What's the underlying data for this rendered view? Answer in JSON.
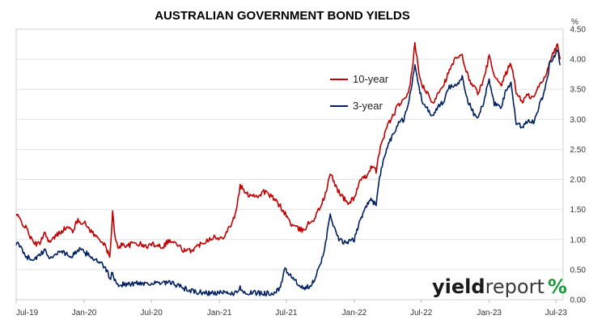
{
  "chart_data": {
    "type": "line",
    "title": "AUSTRALIAN GOVERNMENT BOND YIELDS",
    "ylabel": "%",
    "xlabel": "",
    "ylim": [
      0,
      4.5
    ],
    "y_ticks": [
      "0.00",
      "0.50",
      "1.00",
      "1.50",
      "2.00",
      "2.50",
      "3.00",
      "3.50",
      "4.00",
      "4.50"
    ],
    "x_tick_labels": [
      "Jul-19",
      "Jan-20",
      "Jul-20",
      "Jan-21",
      "Jul-21",
      "Jan-22",
      "Jul-22",
      "Jan-23",
      "Jul-23"
    ],
    "grid": "horizontal",
    "legend_position": "upper-middle",
    "colors": {
      "ten_year": "#c00000",
      "three_year": "#002060"
    },
    "series": [
      {
        "name": "10-year",
        "points": [
          [
            "2019-07-01",
            1.42
          ],
          [
            "2019-07-15",
            1.3
          ],
          [
            "2019-08-01",
            1.15
          ],
          [
            "2019-08-15",
            0.95
          ],
          [
            "2019-09-01",
            0.92
          ],
          [
            "2019-09-15",
            1.12
          ],
          [
            "2019-10-01",
            0.95
          ],
          [
            "2019-10-15",
            1.05
          ],
          [
            "2019-11-01",
            1.15
          ],
          [
            "2019-11-15",
            1.2
          ],
          [
            "2019-12-01",
            1.15
          ],
          [
            "2019-12-15",
            1.32
          ],
          [
            "2020-01-01",
            1.28
          ],
          [
            "2020-01-15",
            1.18
          ],
          [
            "2020-02-01",
            1.05
          ],
          [
            "2020-02-15",
            1.0
          ],
          [
            "2020-03-01",
            0.85
          ],
          [
            "2020-03-10",
            0.7
          ],
          [
            "2020-03-18",
            1.45
          ],
          [
            "2020-03-25",
            1.0
          ],
          [
            "2020-04-01",
            0.88
          ],
          [
            "2020-04-15",
            0.92
          ],
          [
            "2020-05-01",
            0.9
          ],
          [
            "2020-05-15",
            0.95
          ],
          [
            "2020-06-01",
            0.92
          ],
          [
            "2020-06-15",
            0.88
          ],
          [
            "2020-07-01",
            0.92
          ],
          [
            "2020-07-15",
            0.92
          ],
          [
            "2020-08-01",
            0.88
          ],
          [
            "2020-08-15",
            0.98
          ],
          [
            "2020-09-01",
            0.95
          ],
          [
            "2020-09-15",
            0.88
          ],
          [
            "2020-10-01",
            0.8
          ],
          [
            "2020-10-15",
            0.82
          ],
          [
            "2020-11-01",
            0.88
          ],
          [
            "2020-11-15",
            0.95
          ],
          [
            "2020-12-01",
            1.0
          ],
          [
            "2020-12-15",
            1.05
          ],
          [
            "2021-01-01",
            1.0
          ],
          [
            "2021-01-15",
            1.08
          ],
          [
            "2021-02-01",
            1.25
          ],
          [
            "2021-02-15",
            1.45
          ],
          [
            "2021-02-26",
            1.9
          ],
          [
            "2021-03-15",
            1.75
          ],
          [
            "2021-04-01",
            1.75
          ],
          [
            "2021-04-15",
            1.72
          ],
          [
            "2021-05-01",
            1.8
          ],
          [
            "2021-05-15",
            1.75
          ],
          [
            "2021-06-01",
            1.65
          ],
          [
            "2021-06-15",
            1.55
          ],
          [
            "2021-07-01",
            1.4
          ],
          [
            "2021-07-15",
            1.25
          ],
          [
            "2021-08-01",
            1.18
          ],
          [
            "2021-08-15",
            1.15
          ],
          [
            "2021-09-01",
            1.28
          ],
          [
            "2021-09-15",
            1.35
          ],
          [
            "2021-10-01",
            1.55
          ],
          [
            "2021-10-15",
            1.75
          ],
          [
            "2021-10-28",
            2.1
          ],
          [
            "2021-11-15",
            1.85
          ],
          [
            "2021-12-01",
            1.7
          ],
          [
            "2021-12-15",
            1.6
          ],
          [
            "2022-01-01",
            1.7
          ],
          [
            "2022-01-15",
            1.95
          ],
          [
            "2022-02-01",
            2.05
          ],
          [
            "2022-02-15",
            2.2
          ],
          [
            "2022-03-01",
            2.15
          ],
          [
            "2022-03-15",
            2.6
          ],
          [
            "2022-04-01",
            2.9
          ],
          [
            "2022-04-15",
            3.05
          ],
          [
            "2022-05-01",
            3.25
          ],
          [
            "2022-05-15",
            3.3
          ],
          [
            "2022-06-01",
            3.55
          ],
          [
            "2022-06-14",
            4.25
          ],
          [
            "2022-06-25",
            3.75
          ],
          [
            "2022-07-05",
            3.55
          ],
          [
            "2022-07-20",
            3.4
          ],
          [
            "2022-08-01",
            3.25
          ],
          [
            "2022-08-15",
            3.45
          ],
          [
            "2022-09-01",
            3.6
          ],
          [
            "2022-09-15",
            3.8
          ],
          [
            "2022-10-01",
            4.0
          ],
          [
            "2022-10-20",
            4.05
          ],
          [
            "2022-11-05",
            3.7
          ],
          [
            "2022-11-20",
            3.55
          ],
          [
            "2022-12-01",
            3.45
          ],
          [
            "2022-12-15",
            3.6
          ],
          [
            "2023-01-01",
            4.05
          ],
          [
            "2023-01-15",
            3.7
          ],
          [
            "2023-02-01",
            3.55
          ],
          [
            "2023-02-15",
            3.75
          ],
          [
            "2023-03-01",
            3.95
          ],
          [
            "2023-03-15",
            3.45
          ],
          [
            "2023-04-01",
            3.3
          ],
          [
            "2023-04-15",
            3.4
          ],
          [
            "2023-05-01",
            3.35
          ],
          [
            "2023-05-15",
            3.55
          ],
          [
            "2023-06-01",
            3.7
          ],
          [
            "2023-06-15",
            4.0
          ],
          [
            "2023-06-25",
            4.1
          ],
          [
            "2023-07-05",
            4.25
          ],
          [
            "2023-07-12",
            4.0
          ]
        ]
      },
      {
        "name": "3-year",
        "points": [
          [
            "2019-07-01",
            0.95
          ],
          [
            "2019-07-15",
            0.85
          ],
          [
            "2019-08-01",
            0.7
          ],
          [
            "2019-08-15",
            0.68
          ],
          [
            "2019-09-01",
            0.72
          ],
          [
            "2019-09-15",
            0.82
          ],
          [
            "2019-10-01",
            0.7
          ],
          [
            "2019-10-15",
            0.75
          ],
          [
            "2019-11-01",
            0.82
          ],
          [
            "2019-11-15",
            0.75
          ],
          [
            "2019-12-01",
            0.72
          ],
          [
            "2019-12-15",
            0.85
          ],
          [
            "2020-01-01",
            0.78
          ],
          [
            "2020-01-15",
            0.75
          ],
          [
            "2020-02-01",
            0.65
          ],
          [
            "2020-02-15",
            0.6
          ],
          [
            "2020-03-01",
            0.5
          ],
          [
            "2020-03-10",
            0.35
          ],
          [
            "2020-03-18",
            0.45
          ],
          [
            "2020-03-25",
            0.3
          ],
          [
            "2020-04-01",
            0.25
          ],
          [
            "2020-04-15",
            0.26
          ],
          [
            "2020-05-01",
            0.25
          ],
          [
            "2020-05-15",
            0.27
          ],
          [
            "2020-06-01",
            0.28
          ],
          [
            "2020-06-15",
            0.27
          ],
          [
            "2020-07-01",
            0.28
          ],
          [
            "2020-07-15",
            0.27
          ],
          [
            "2020-08-01",
            0.27
          ],
          [
            "2020-08-15",
            0.28
          ],
          [
            "2020-09-01",
            0.26
          ],
          [
            "2020-09-15",
            0.22
          ],
          [
            "2020-10-01",
            0.18
          ],
          [
            "2020-10-15",
            0.15
          ],
          [
            "2020-11-01",
            0.12
          ],
          [
            "2020-11-15",
            0.12
          ],
          [
            "2020-12-01",
            0.11
          ],
          [
            "2020-12-15",
            0.11
          ],
          [
            "2021-01-01",
            0.11
          ],
          [
            "2021-01-15",
            0.11
          ],
          [
            "2021-02-01",
            0.11
          ],
          [
            "2021-02-15",
            0.11
          ],
          [
            "2021-02-26",
            0.2
          ],
          [
            "2021-03-15",
            0.11
          ],
          [
            "2021-04-01",
            0.11
          ],
          [
            "2021-04-15",
            0.11
          ],
          [
            "2021-05-01",
            0.11
          ],
          [
            "2021-05-15",
            0.11
          ],
          [
            "2021-06-01",
            0.12
          ],
          [
            "2021-06-15",
            0.18
          ],
          [
            "2021-06-25",
            0.5
          ],
          [
            "2021-07-15",
            0.4
          ],
          [
            "2021-08-01",
            0.25
          ],
          [
            "2021-08-15",
            0.18
          ],
          [
            "2021-09-01",
            0.22
          ],
          [
            "2021-09-15",
            0.35
          ],
          [
            "2021-10-01",
            0.55
          ],
          [
            "2021-10-15",
            0.95
          ],
          [
            "2021-10-28",
            1.4
          ],
          [
            "2021-11-15",
            1.05
          ],
          [
            "2021-12-01",
            0.95
          ],
          [
            "2021-12-15",
            0.95
          ],
          [
            "2022-01-01",
            1.0
          ],
          [
            "2022-01-15",
            1.3
          ],
          [
            "2022-02-01",
            1.55
          ],
          [
            "2022-02-15",
            1.65
          ],
          [
            "2022-03-01",
            1.6
          ],
          [
            "2022-03-15",
            2.2
          ],
          [
            "2022-04-01",
            2.55
          ],
          [
            "2022-04-15",
            2.75
          ],
          [
            "2022-05-01",
            2.95
          ],
          [
            "2022-05-15",
            3.0
          ],
          [
            "2022-06-01",
            3.4
          ],
          [
            "2022-06-14",
            3.9
          ],
          [
            "2022-06-25",
            3.55
          ],
          [
            "2022-07-05",
            3.25
          ],
          [
            "2022-07-20",
            3.15
          ],
          [
            "2022-08-01",
            3.05
          ],
          [
            "2022-08-15",
            3.2
          ],
          [
            "2022-09-01",
            3.3
          ],
          [
            "2022-09-15",
            3.55
          ],
          [
            "2022-10-01",
            3.55
          ],
          [
            "2022-10-20",
            3.7
          ],
          [
            "2022-11-05",
            3.3
          ],
          [
            "2022-11-20",
            3.1
          ],
          [
            "2022-12-01",
            3.05
          ],
          [
            "2022-12-15",
            3.25
          ],
          [
            "2023-01-01",
            3.65
          ],
          [
            "2023-01-15",
            3.25
          ],
          [
            "2023-02-01",
            3.2
          ],
          [
            "2023-02-15",
            3.45
          ],
          [
            "2023-03-01",
            3.6
          ],
          [
            "2023-03-15",
            2.95
          ],
          [
            "2023-04-01",
            2.85
          ],
          [
            "2023-04-15",
            3.0
          ],
          [
            "2023-05-01",
            2.95
          ],
          [
            "2023-05-15",
            3.2
          ],
          [
            "2023-06-01",
            3.5
          ],
          [
            "2023-06-15",
            3.95
          ],
          [
            "2023-06-25",
            4.05
          ],
          [
            "2023-07-05",
            4.15
          ],
          [
            "2023-07-12",
            3.9
          ]
        ]
      }
    ]
  },
  "logo": {
    "part1": "yield",
    "part2": "report",
    "part3": "%",
    "colors": [
      "#c00000",
      "#1a9b3c"
    ]
  }
}
